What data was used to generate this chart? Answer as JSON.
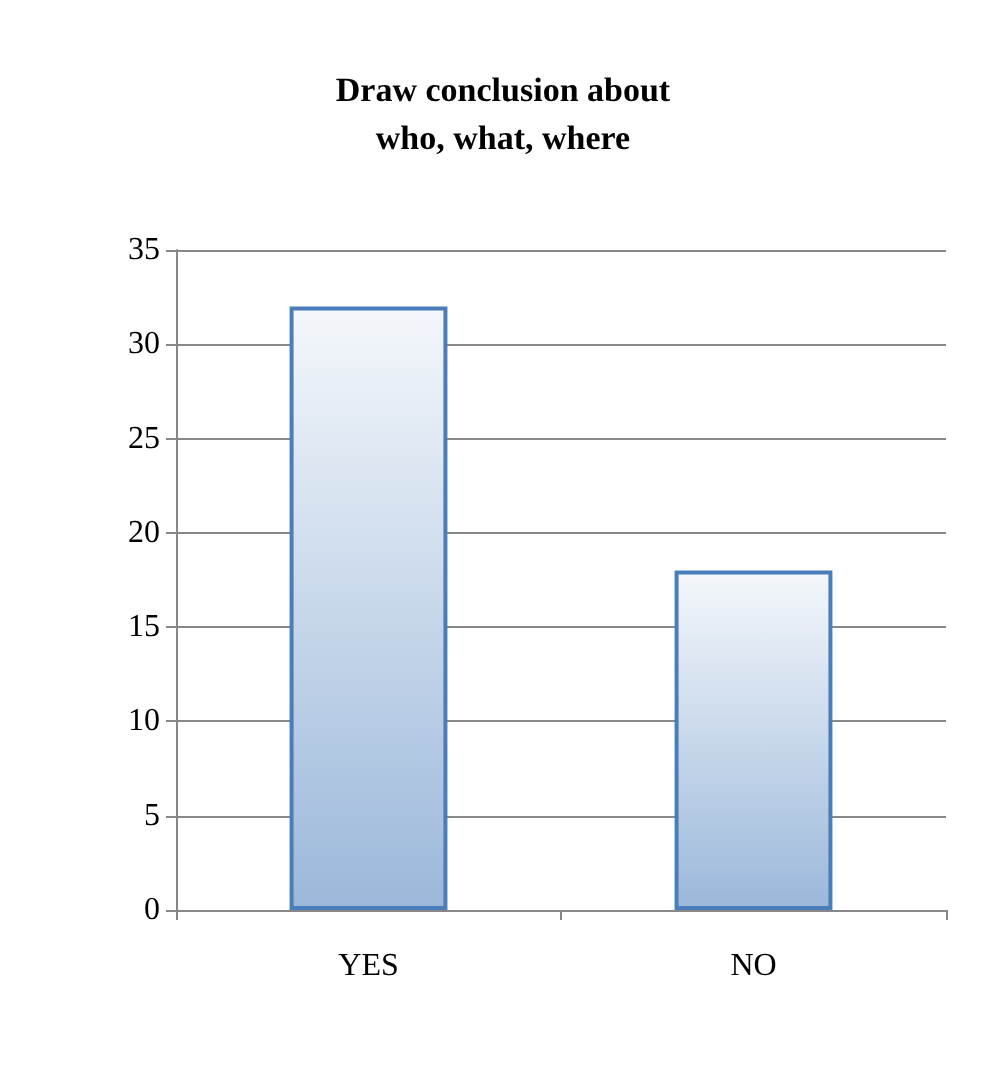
{
  "chart_data": {
    "type": "bar",
    "title": "Draw conclusion about\nwho, what, where",
    "categories": [
      "YES",
      "NO"
    ],
    "values": [
      32,
      18
    ],
    "color": "#4a7ebb",
    "ylim": [
      0,
      35
    ],
    "yticks": [
      0,
      5,
      10,
      15,
      20,
      25,
      30,
      35
    ],
    "grid": "y"
  }
}
